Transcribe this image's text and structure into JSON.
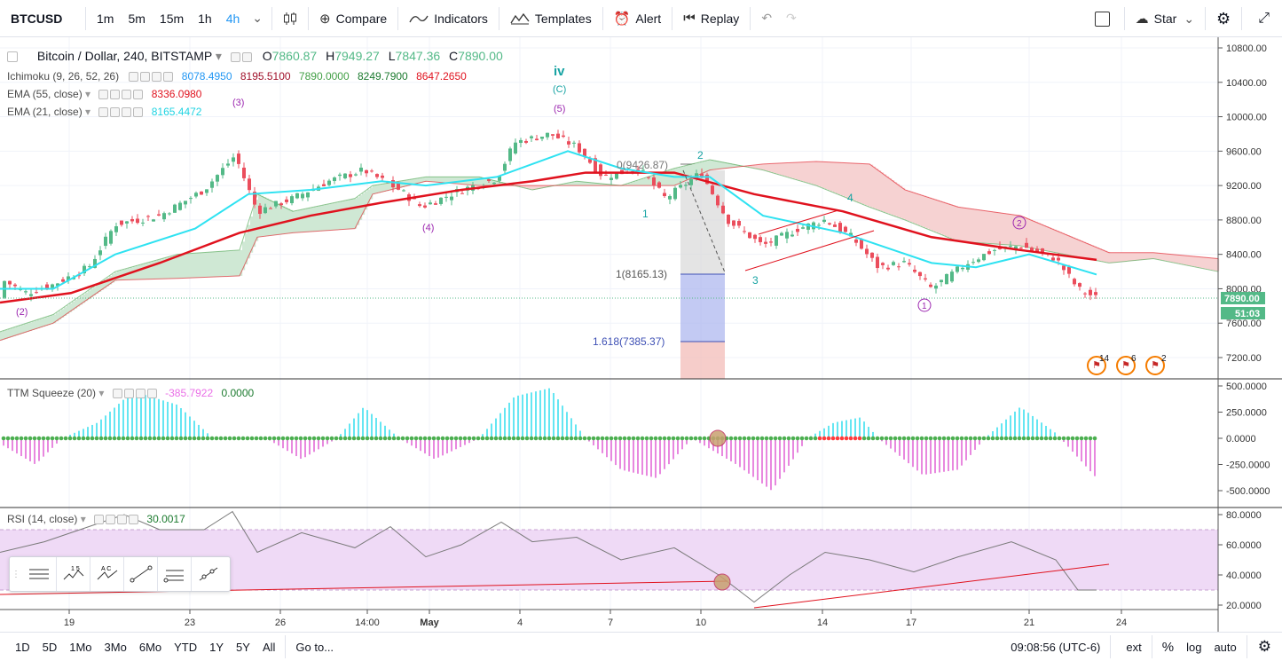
{
  "toolbar": {
    "symbol": "BTCUSD",
    "intervals": [
      "1m",
      "5m",
      "15m",
      "1h",
      "4h"
    ],
    "active_interval": "4h",
    "compare": "Compare",
    "indicators": "Indicators",
    "templates": "Templates",
    "alert": "Alert",
    "replay": "Replay",
    "star": "Star"
  },
  "legend": {
    "title": "Bitcoin / Dollar, 240, BITSTAMP",
    "open_label": "O",
    "open": "7860.87",
    "high_label": "H",
    "high": "7949.27",
    "low_label": "L",
    "low": "7847.36",
    "close_label": "C",
    "close": "7890.00",
    "ichimoku_label": "Ichimoku (9, 26, 52, 26)",
    "ichimoku_values": [
      "8078.4950",
      "8195.5100",
      "7890.0000",
      "8249.7900",
      "8647.2650"
    ],
    "ema55_label": "EMA (55, close)",
    "ema55_value": "8336.0980",
    "ema21_label": "EMA (21, close)",
    "ema21_value": "8165.4472"
  },
  "price_axis": {
    "ticks": [
      "10800.00",
      "10400.00",
      "10000.00",
      "9600.00",
      "9200.00",
      "8800.00",
      "8400.00",
      "8000.00",
      "7600.00",
      "7200.00"
    ],
    "last_price": "7890.00",
    "countdown": "51:03"
  },
  "ttm": {
    "label": "TTM Squeeze (20)",
    "value1": "-385.7922",
    "value2": "0.0000",
    "ticks": [
      "500.0000",
      "250.0000",
      "0.0000",
      "-250.0000",
      "-500.0000"
    ]
  },
  "rsi": {
    "label": "RSI (14, close)",
    "value": "30.0017",
    "ticks": [
      "80.0000",
      "60.0000",
      "40.0000",
      "20.0000"
    ]
  },
  "time_axis": [
    "19",
    "23",
    "26",
    "14:00",
    "May",
    "4",
    "7",
    "10",
    "14",
    "17",
    "21",
    "24"
  ],
  "annotations": {
    "wave_iv": "iv",
    "wave_C": "(C)",
    "wave_5": "(5)",
    "wave_3": "(3)",
    "wave_4": "(4)",
    "wave_2": "(2)",
    "fib_0": "0(9426.87)",
    "fib_1": "1(8165.13)",
    "fib_1618": "1.618(7385.37)",
    "w1": "1",
    "w2": "2",
    "w3": "3",
    "w4": "4",
    "c1": "1",
    "c2": "2"
  },
  "events": [
    "14",
    "6",
    "2"
  ],
  "bottom_bar": {
    "ranges": [
      "1D",
      "5D",
      "1Mo",
      "3Mo",
      "6Mo",
      "YTD",
      "1Y",
      "5Y",
      "All"
    ],
    "goto": "Go to...",
    "time": "09:08:56 (UTC-6)",
    "ext": "ext",
    "pct": "%",
    "log": "log",
    "auto": "auto"
  },
  "colors": {
    "up": "#53b987",
    "down": "#eb4d5c",
    "ema55": "#e0121e",
    "ema21": "#2ee2f1",
    "cloud_green": "#cfe8d4",
    "cloud_red": "#f6d2d2",
    "rsi_band": "#efdaf6"
  }
}
